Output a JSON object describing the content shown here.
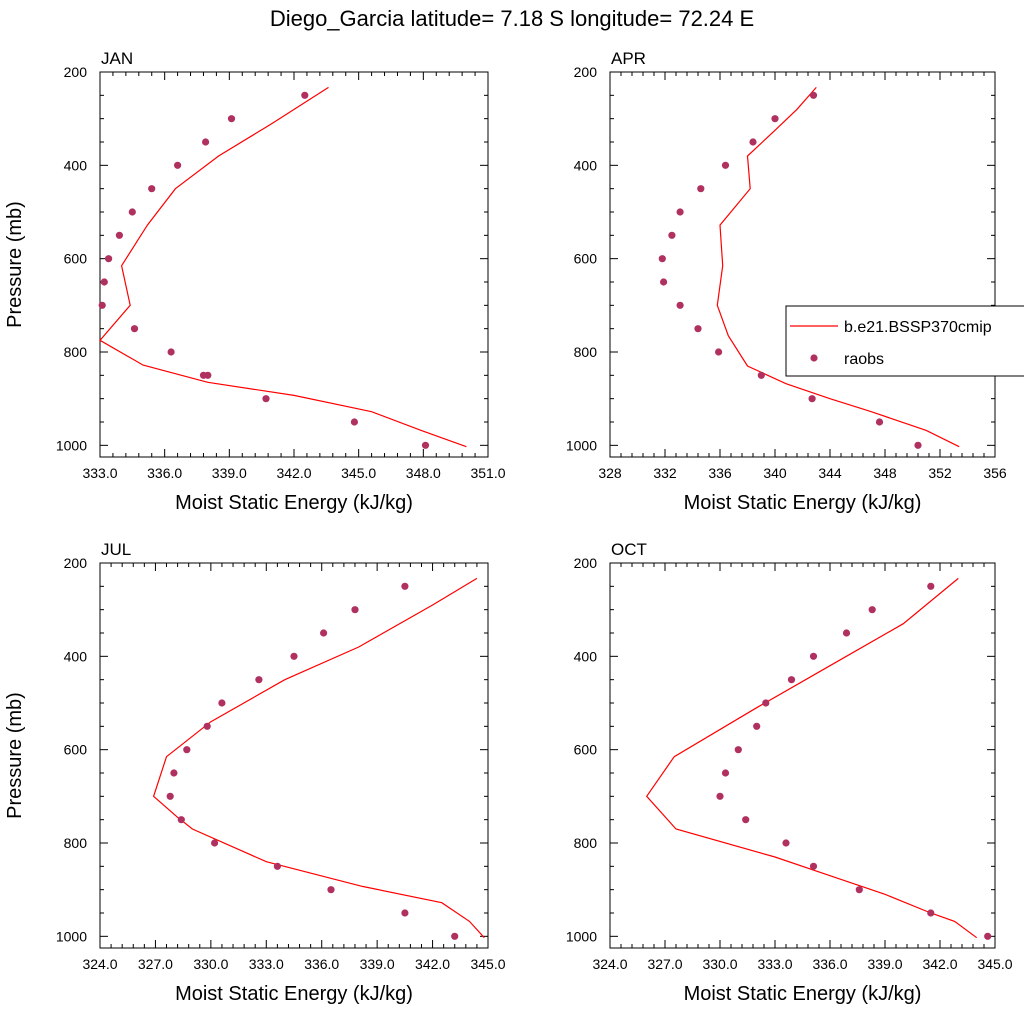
{
  "figure": {
    "title": "Diego_Garcia  latitude= 7.18 S longitude= 72.24 E"
  },
  "legend": {
    "items": [
      {
        "label": "b.e21.BSSP370cmip",
        "kind": "line",
        "color": "#ff0000"
      },
      {
        "label": "raobs",
        "kind": "marker",
        "color": "#b03060"
      }
    ],
    "placement": "right of APR panel"
  },
  "chart_data": [
    {
      "type": "line",
      "panel": "JAN",
      "title": "JAN",
      "xlabel": "Moist Static Energy (kJ/kg)",
      "ylabel": "Pressure (mb)",
      "xlim": [
        333,
        351
      ],
      "ylim": [
        1025,
        200
      ],
      "y_inverted": true,
      "xticks": [
        "333.0",
        "336.0",
        "339.0",
        "342.0",
        "345.0",
        "348.0",
        "351.0"
      ],
      "yticks": [
        "200",
        "400",
        "600",
        "800",
        "1000"
      ],
      "series": [
        {
          "name": "b.e21.BSSP370cmip",
          "kind": "line",
          "color": "#ff0000",
          "x": [
            350.0,
            347.9,
            345.6,
            342.0,
            338.0,
            335.0,
            333.0,
            334.4,
            334.0,
            335.2,
            336.5,
            338.5,
            341.0,
            343.6
          ],
          "y": [
            1003,
            968,
            928,
            893,
            865,
            828,
            775,
            700,
            615,
            528,
            450,
            380,
            310,
            233
          ]
        },
        {
          "name": "raobs",
          "kind": "scatter",
          "color": "#b03060",
          "x": [
            348.1,
            344.8,
            340.7,
            338.0,
            337.8,
            336.3,
            334.6,
            333.1,
            333.2,
            333.4,
            333.9,
            334.5,
            335.4,
            336.6,
            337.9,
            339.1,
            342.5
          ],
          "y": [
            1000,
            950,
            900,
            850,
            850,
            800,
            750,
            700,
            650,
            600,
            550,
            500,
            450,
            400,
            350,
            300,
            250
          ]
        }
      ]
    },
    {
      "type": "line",
      "panel": "APR",
      "title": "APR",
      "xlabel": "Moist Static Energy (kJ/kg)",
      "ylabel": "",
      "xlim": [
        328,
        356
      ],
      "ylim": [
        1025,
        200
      ],
      "y_inverted": true,
      "xticks": [
        "328",
        "332",
        "336",
        "340",
        "344",
        "348",
        "352",
        "356"
      ],
      "yticks": [
        "200",
        "400",
        "600",
        "800",
        "1000"
      ],
      "series": [
        {
          "name": "b.e21.BSSP370cmip",
          "kind": "line",
          "color": "#ff0000",
          "x": [
            353.4,
            351.0,
            347.0,
            344.0,
            340.8,
            338.0,
            336.6,
            335.8,
            336.2,
            336.0,
            338.2,
            338.0,
            340.0,
            341.6,
            343.0
          ],
          "y": [
            1003,
            968,
            928,
            900,
            868,
            830,
            765,
            700,
            615,
            528,
            450,
            380,
            325,
            280,
            233
          ]
        },
        {
          "name": "raobs",
          "kind": "scatter",
          "color": "#b03060",
          "x": [
            350.4,
            347.6,
            342.7,
            339.0,
            335.9,
            334.4,
            333.1,
            331.9,
            331.8,
            332.5,
            333.1,
            334.6,
            336.4,
            338.4,
            340.0,
            342.8
          ],
          "y": [
            1000,
            950,
            900,
            850,
            800,
            750,
            700,
            650,
            600,
            550,
            500,
            450,
            400,
            350,
            300,
            250
          ]
        }
      ]
    },
    {
      "type": "line",
      "panel": "JUL",
      "title": "JUL",
      "xlabel": "Moist Static Energy (kJ/kg)",
      "ylabel": "Pressure (mb)",
      "xlim": [
        324,
        345
      ],
      "ylim": [
        1025,
        200
      ],
      "y_inverted": true,
      "xticks": [
        "324.0",
        "327.0",
        "330.0",
        "333.0",
        "336.0",
        "339.0",
        "342.0",
        "345.0"
      ],
      "yticks": [
        "200",
        "400",
        "600",
        "800",
        "1000"
      ],
      "series": [
        {
          "name": "b.e21.BSSP370cmip",
          "kind": "line",
          "color": "#ff0000",
          "x": [
            344.8,
            344.0,
            342.5,
            338.2,
            333.0,
            329.0,
            328.2,
            326.9,
            327.6,
            330.0,
            334.0,
            338.0,
            342.0,
            344.4
          ],
          "y": [
            1003,
            968,
            928,
            893,
            840,
            770,
            745,
            700,
            615,
            540,
            450,
            380,
            290,
            233
          ]
        },
        {
          "name": "raobs",
          "kind": "scatter",
          "color": "#b03060",
          "x": [
            343.2,
            340.5,
            336.5,
            333.6,
            330.2,
            328.4,
            327.8,
            328.0,
            328.7,
            329.8,
            330.6,
            332.6,
            334.5,
            336.1,
            337.8,
            340.5
          ],
          "y": [
            1000,
            950,
            900,
            850,
            800,
            750,
            700,
            650,
            600,
            550,
            500,
            450,
            400,
            350,
            300,
            250
          ]
        }
      ]
    },
    {
      "type": "line",
      "panel": "OCT",
      "title": "OCT",
      "xlabel": "Moist Static Energy (kJ/kg)",
      "ylabel": "",
      "xlim": [
        324,
        345
      ],
      "ylim": [
        1025,
        200
      ],
      "y_inverted": true,
      "xticks": [
        "324.0",
        "327.0",
        "330.0",
        "333.0",
        "336.0",
        "339.0",
        "342.0",
        "345.0"
      ],
      "yticks": [
        "200",
        "400",
        "600",
        "800",
        "1000"
      ],
      "series": [
        {
          "name": "b.e21.BSSP370cmip",
          "kind": "line",
          "color": "#ff0000",
          "x": [
            344.0,
            342.8,
            341.5,
            339.0,
            336.0,
            333.0,
            327.6,
            326.0,
            327.5,
            332.0,
            336.0,
            340.0,
            343.0
          ],
          "y": [
            1003,
            968,
            950,
            910,
            870,
            830,
            770,
            700,
            615,
            510,
            420,
            330,
            233
          ]
        },
        {
          "name": "raobs",
          "kind": "scatter",
          "color": "#b03060",
          "x": [
            344.6,
            341.5,
            337.6,
            335.1,
            333.6,
            331.4,
            330.0,
            330.3,
            331.0,
            332.0,
            332.5,
            333.9,
            335.1,
            336.9,
            338.3,
            341.5
          ],
          "y": [
            1000,
            950,
            900,
            850,
            800,
            750,
            700,
            650,
            600,
            550,
            500,
            450,
            400,
            350,
            300,
            250
          ]
        }
      ]
    }
  ]
}
